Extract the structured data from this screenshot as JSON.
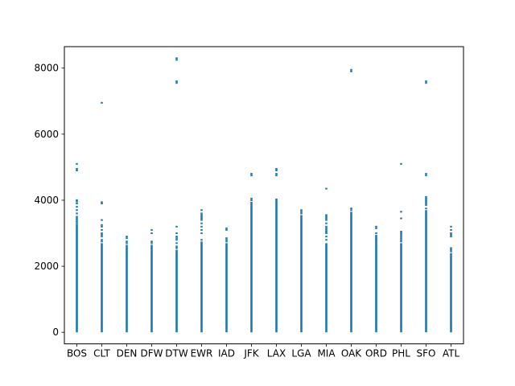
{
  "chart_data": {
    "type": "scatter",
    "title": "",
    "xlabel": "",
    "ylabel": "",
    "grid": false,
    "legend": "none",
    "ylim": [
      -350,
      8650
    ],
    "yticks": [
      0,
      2000,
      4000,
      6000,
      8000
    ],
    "ytick_labels": [
      "0",
      "2000",
      "4000",
      "6000",
      "8000"
    ],
    "categories": [
      "BOS",
      "CLT",
      "DEN",
      "DFW",
      "DTW",
      "EWR",
      "IAD",
      "JFK",
      "LAX",
      "LGA",
      "MIA",
      "OAK",
      "ORD",
      "PHL",
      "SFO",
      "ATL"
    ],
    "marker_color": "#1f77b4",
    "series": [
      {
        "columns": [
          {
            "category": "BOS",
            "range": [
              0,
              3270
            ],
            "points": [
              3300,
              3350,
              3400,
              3450,
              3500,
              3600,
              3700,
              3800,
              3900,
              3960,
              4000,
              4900,
              4950,
              5100
            ]
          },
          {
            "category": "CLT",
            "range": [
              0,
              2700
            ],
            "points": [
              2750,
              2800,
              2900,
              2950,
              3000,
              3100,
              3200,
              3250,
              3400,
              3900,
              3940,
              6950
            ]
          },
          {
            "category": "DEN",
            "range": [
              0,
              2650
            ],
            "points": [
              2700,
              2750,
              2850,
              2900
            ]
          },
          {
            "category": "DFW",
            "range": [
              0,
              2650
            ],
            "points": [
              2700,
              2750,
              3000,
              3100
            ]
          },
          {
            "category": "DTW",
            "range": [
              0,
              2500
            ],
            "points": [
              2550,
              2600,
              2700,
              2800,
              2850,
              2900,
              3000,
              3200,
              7550,
              7600,
              8250,
              8300
            ]
          },
          {
            "category": "EWR",
            "range": [
              0,
              2750
            ],
            "points": [
              2800,
              3000,
              3100,
              3200,
              3300,
              3400,
              3450,
              3500,
              3550,
              3600,
              3700
            ]
          },
          {
            "category": "IAD",
            "range": [
              0,
              2700
            ],
            "points": [
              2750,
              2800,
              2850,
              3100,
              3150
            ]
          },
          {
            "category": "JFK",
            "range": [
              0,
              3950
            ],
            "points": [
              4000,
              4050,
              4750,
              4800
            ]
          },
          {
            "category": "LAX",
            "range": [
              0,
              4050
            ],
            "points": [
              4750,
              4800,
              4900,
              4950
            ]
          },
          {
            "category": "LGA",
            "range": [
              0,
              3550
            ],
            "points": [
              3600,
              3650,
              3700
            ]
          },
          {
            "category": "MIA",
            "range": [
              0,
              2700
            ],
            "points": [
              2800,
              2900,
              3000,
              3050,
              3100,
              3150,
              3200,
              3300,
              3400,
              3450,
              3500,
              3550,
              4350
            ]
          },
          {
            "category": "OAK",
            "range": [
              0,
              3650
            ],
            "points": [
              3700,
              3750,
              7900,
              7950
            ]
          },
          {
            "category": "ORD",
            "range": [
              0,
              2950
            ],
            "points": [
              3000,
              3150,
              3200
            ]
          },
          {
            "category": "PHL",
            "range": [
              0,
              2700
            ],
            "points": [
              2750,
              2800,
              2850,
              2900,
              2950,
              3000,
              3050,
              3450,
              3650,
              5100
            ]
          },
          {
            "category": "SFO",
            "range": [
              0,
              3700
            ],
            "points": [
              3750,
              3850,
              3900,
              3950,
              4000,
              4050,
              4100,
              4750,
              4800,
              7550,
              7600
            ]
          },
          {
            "category": "ATL",
            "range": [
              0,
              2400
            ],
            "points": [
              2450,
              2500,
              2550,
              2900,
              2950,
              3000,
              3100,
              3200
            ]
          }
        ]
      }
    ]
  }
}
